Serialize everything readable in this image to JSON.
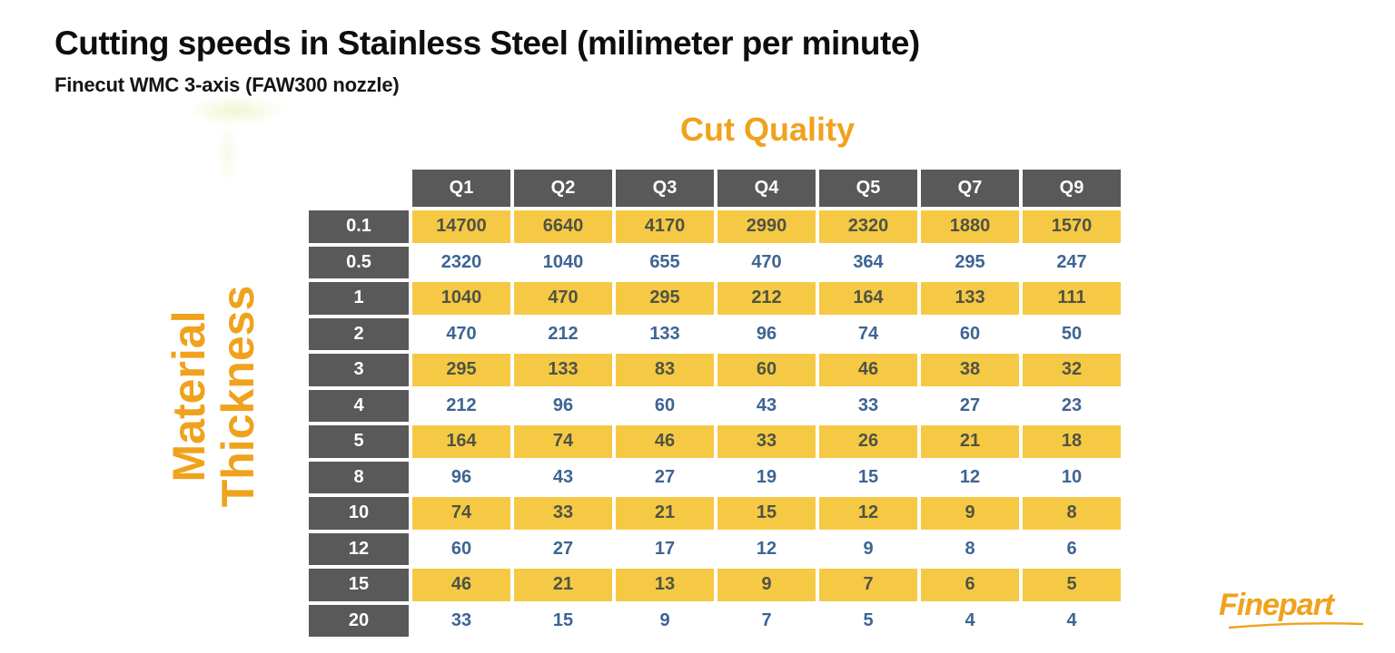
{
  "page": {
    "title": "Cutting speeds in Stainless Steel (milimeter per minute)",
    "subtitle": "Finecut WMC 3-axis (FAW300 nozzle)"
  },
  "axes": {
    "column_axis_label": "Cut Quality",
    "row_axis_label_line1": "Material",
    "row_axis_label_line2": "Thickness"
  },
  "branding": {
    "logo_text": "Finepart"
  },
  "colors": {
    "accent_orange": "#F0A21D",
    "header_cell_gray": "#595959",
    "highlight_yellow": "#F6C945",
    "number_blue": "#3E6493",
    "number_dark_on_yellow": "#4F5443",
    "title_black": "#0E0E0E"
  },
  "chart_data": {
    "type": "table",
    "title": "Cutting speeds in Stainless Steel (milimeter per minute)",
    "subtitle": "Finecut WMC 3-axis (FAW300 nozzle)",
    "column_axis_label": "Cut Quality",
    "row_axis_label": "Material Thickness",
    "columns": [
      "Q1",
      "Q2",
      "Q3",
      "Q4",
      "Q5",
      "Q7",
      "Q9"
    ],
    "rows": [
      "0.1",
      "0.5",
      "1",
      "2",
      "3",
      "4",
      "5",
      "8",
      "10",
      "12",
      "15",
      "20"
    ],
    "values": [
      [
        14700,
        6640,
        4170,
        2990,
        2320,
        1880,
        1570
      ],
      [
        2320,
        1040,
        655,
        470,
        364,
        295,
        247
      ],
      [
        1040,
        470,
        295,
        212,
        164,
        133,
        111
      ],
      [
        470,
        212,
        133,
        96,
        74,
        60,
        50
      ],
      [
        295,
        133,
        83,
        60,
        46,
        38,
        32
      ],
      [
        212,
        96,
        60,
        43,
        33,
        27,
        23
      ],
      [
        164,
        74,
        46,
        33,
        26,
        21,
        18
      ],
      [
        96,
        43,
        27,
        19,
        15,
        12,
        10
      ],
      [
        74,
        33,
        21,
        15,
        12,
        9,
        8
      ],
      [
        60,
        27,
        17,
        12,
        9,
        8,
        6
      ],
      [
        46,
        21,
        13,
        9,
        7,
        6,
        5
      ],
      [
        33,
        15,
        9,
        7,
        5,
        4,
        4
      ]
    ],
    "highlighted_row_indices": [
      0,
      2,
      4,
      6,
      8,
      10
    ],
    "layout": {
      "header_style": "dark-gray-cells-white-text",
      "zebra_striping": "alternate rows highlighted yellow starting with first data row",
      "grid": "white gaps between all cells"
    }
  }
}
